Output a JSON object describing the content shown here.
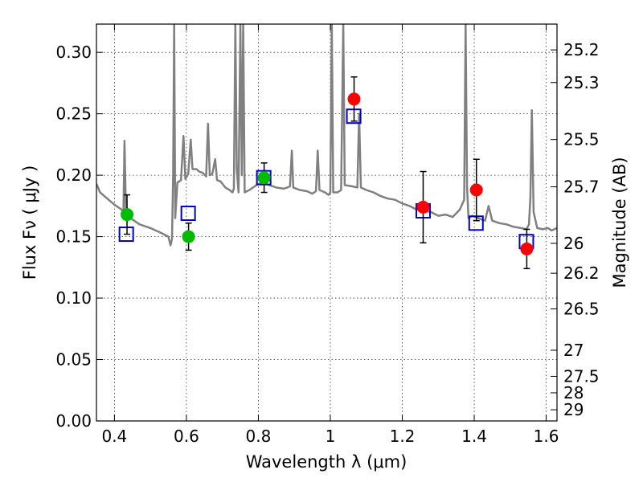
{
  "chart_data": {
    "type": "scatter",
    "xlabel": "Wavelength  λ (μm)",
    "ylabel": "Flux  Fν  ( μJy )",
    "ylabel_right": "Magnitude (AB)",
    "xlim": [
      0.35,
      1.63
    ],
    "ylim": [
      0.0,
      0.323
    ],
    "grid": true,
    "x_ticks": [
      {
        "value": 0.4,
        "label": "0.4"
      },
      {
        "value": 0.6,
        "label": "0.6"
      },
      {
        "value": 0.8,
        "label": "0.8"
      },
      {
        "value": 1.0,
        "label": "1"
      },
      {
        "value": 1.2,
        "label": "1.2"
      },
      {
        "value": 1.4,
        "label": "1.4"
      },
      {
        "value": 1.6,
        "label": "1.6"
      }
    ],
    "y_ticks": [
      {
        "value": 0.0,
        "label": "0.00"
      },
      {
        "value": 0.05,
        "label": "0.05"
      },
      {
        "value": 0.1,
        "label": "0.10"
      },
      {
        "value": 0.15,
        "label": "0.15"
      },
      {
        "value": 0.2,
        "label": "0.20"
      },
      {
        "value": 0.25,
        "label": "0.25"
      },
      {
        "value": 0.3,
        "label": "0.30"
      }
    ],
    "right_ticks": [
      {
        "value": 25.2,
        "label": "25.2"
      },
      {
        "value": 25.3,
        "label": "25.3"
      },
      {
        "value": 25.5,
        "label": "25.5"
      },
      {
        "value": 25.7,
        "label": "25.7"
      },
      {
        "value": 26.0,
        "label": "26"
      },
      {
        "value": 26.2,
        "label": "26.2"
      },
      {
        "value": 26.5,
        "label": "26.5"
      },
      {
        "value": 27.0,
        "label": "27"
      },
      {
        "value": 27.5,
        "label": "27.5"
      },
      {
        "value": 28.0,
        "label": "28"
      },
      {
        "value": 29.0,
        "label": "29"
      }
    ],
    "series": [
      {
        "kind": "line",
        "color": "#808080",
        "points": [
          [
            0.35,
            0.193
          ],
          [
            0.36,
            0.186
          ],
          [
            0.38,
            0.181
          ],
          [
            0.4,
            0.176
          ],
          [
            0.42,
            0.172
          ],
          [
            0.425,
            0.17
          ],
          [
            0.428,
            0.228
          ],
          [
            0.432,
            0.168
          ],
          [
            0.45,
            0.164
          ],
          [
            0.47,
            0.16
          ],
          [
            0.5,
            0.157
          ],
          [
            0.53,
            0.153
          ],
          [
            0.55,
            0.15
          ],
          [
            0.556,
            0.143
          ],
          [
            0.56,
            0.148
          ],
          [
            0.563,
            0.2
          ],
          [
            0.566,
            0.323
          ],
          [
            0.569,
            0.165
          ],
          [
            0.575,
            0.194
          ],
          [
            0.585,
            0.196
          ],
          [
            0.592,
            0.232
          ],
          [
            0.597,
            0.197
          ],
          [
            0.605,
            0.201
          ],
          [
            0.612,
            0.229
          ],
          [
            0.617,
            0.205
          ],
          [
            0.628,
            0.205
          ],
          [
            0.635,
            0.203
          ],
          [
            0.645,
            0.202
          ],
          [
            0.655,
            0.199
          ],
          [
            0.66,
            0.242
          ],
          [
            0.665,
            0.2
          ],
          [
            0.672,
            0.201
          ],
          [
            0.68,
            0.213
          ],
          [
            0.685,
            0.196
          ],
          [
            0.695,
            0.195
          ],
          [
            0.708,
            0.19
          ],
          [
            0.72,
            0.188
          ],
          [
            0.728,
            0.186
          ],
          [
            0.732,
            0.189
          ],
          [
            0.736,
            0.323
          ],
          [
            0.74,
            0.205
          ],
          [
            0.745,
            0.186
          ],
          [
            0.75,
            0.323
          ],
          [
            0.754,
            0.2
          ],
          [
            0.758,
            0.323
          ],
          [
            0.762,
            0.186
          ],
          [
            0.775,
            0.188
          ],
          [
            0.79,
            0.191
          ],
          [
            0.8,
            0.193
          ],
          [
            0.815,
            0.194
          ],
          [
            0.83,
            0.192
          ],
          [
            0.85,
            0.19
          ],
          [
            0.87,
            0.189
          ],
          [
            0.88,
            0.19
          ],
          [
            0.888,
            0.191
          ],
          [
            0.893,
            0.22
          ],
          [
            0.897,
            0.19
          ],
          [
            0.915,
            0.188
          ],
          [
            0.935,
            0.187
          ],
          [
            0.95,
            0.185
          ],
          [
            0.96,
            0.187
          ],
          [
            0.965,
            0.22
          ],
          [
            0.97,
            0.188
          ],
          [
            0.985,
            0.186
          ],
          [
            0.995,
            0.184
          ],
          [
            1.0,
            0.186
          ],
          [
            1.004,
            0.323
          ],
          [
            1.008,
            0.186
          ],
          [
            1.02,
            0.186
          ],
          [
            1.03,
            0.188
          ],
          [
            1.036,
            0.323
          ],
          [
            1.04,
            0.192
          ],
          [
            1.06,
            0.191
          ],
          [
            1.075,
            0.19
          ],
          [
            1.08,
            0.25
          ],
          [
            1.085,
            0.19
          ],
          [
            1.1,
            0.188
          ],
          [
            1.12,
            0.186
          ],
          [
            1.14,
            0.183
          ],
          [
            1.16,
            0.181
          ],
          [
            1.18,
            0.18
          ],
          [
            1.2,
            0.177
          ],
          [
            1.22,
            0.175
          ],
          [
            1.24,
            0.172
          ],
          [
            1.26,
            0.171
          ],
          [
            1.28,
            0.17
          ],
          [
            1.3,
            0.167
          ],
          [
            1.32,
            0.168
          ],
          [
            1.34,
            0.166
          ],
          [
            1.36,
            0.172
          ],
          [
            1.372,
            0.18
          ],
          [
            1.376,
            0.323
          ],
          [
            1.38,
            0.19
          ],
          [
            1.384,
            0.165
          ],
          [
            1.395,
            0.167
          ],
          [
            1.41,
            0.165
          ],
          [
            1.43,
            0.163
          ],
          [
            1.44,
            0.175
          ],
          [
            1.45,
            0.163
          ],
          [
            1.47,
            0.161
          ],
          [
            1.49,
            0.16
          ],
          [
            1.51,
            0.158
          ],
          [
            1.53,
            0.157
          ],
          [
            1.545,
            0.156
          ],
          [
            1.552,
            0.16
          ],
          [
            1.556,
            0.182
          ],
          [
            1.56,
            0.253
          ],
          [
            1.565,
            0.17
          ],
          [
            1.575,
            0.157
          ],
          [
            1.59,
            0.156
          ],
          [
            1.605,
            0.157
          ],
          [
            1.615,
            0.155
          ],
          [
            1.63,
            0.157
          ]
        ]
      },
      {
        "kind": "squares",
        "color": "#0000cc",
        "points": [
          [
            0.433,
            0.152
          ],
          [
            0.605,
            0.169
          ],
          [
            0.815,
            0.198
          ],
          [
            1.065,
            0.248
          ],
          [
            1.258,
            0.171
          ],
          [
            1.405,
            0.161
          ],
          [
            1.545,
            0.146
          ]
        ]
      },
      {
        "kind": "circles",
        "color": "#00bb00",
        "points": [
          {
            "x": 0.435,
            "y": 0.168,
            "err": 0.016
          },
          {
            "x": 0.606,
            "y": 0.15,
            "err": 0.011
          },
          {
            "x": 0.816,
            "y": 0.198,
            "err": 0.012
          }
        ]
      },
      {
        "kind": "circles",
        "color": "#ff0000",
        "points": [
          {
            "x": 1.066,
            "y": 0.262,
            "err": 0.018
          },
          {
            "x": 1.258,
            "y": 0.174,
            "err": 0.029
          },
          {
            "x": 1.406,
            "y": 0.188,
            "err": 0.025
          },
          {
            "x": 1.546,
            "y": 0.14,
            "err": 0.016
          }
        ]
      }
    ]
  }
}
